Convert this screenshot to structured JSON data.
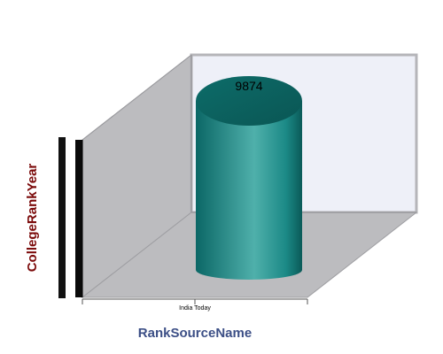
{
  "chart_data": {
    "type": "bar",
    "shape": "3d-cylinder",
    "categories": [
      "India Today"
    ],
    "values": [
      9874
    ],
    "data_labels": [
      "9874"
    ],
    "xlabel": "RankSourceName",
    "ylabel": "CollegeRankYear",
    "ylim": [
      0,
      9874
    ],
    "grid": false,
    "legend": "none"
  },
  "colors": {
    "bar": "#0f7f7c",
    "bar_highlight": "#5ab9b4",
    "bar_dark": "#0a5554",
    "back_wall": "#eef0f8",
    "side_wall": "#bcbcbf",
    "floor": "#bcbcbf",
    "frame": "#aeaeb2",
    "ylabel": "#7b0a0a",
    "xlabel": "#3c4f86"
  }
}
